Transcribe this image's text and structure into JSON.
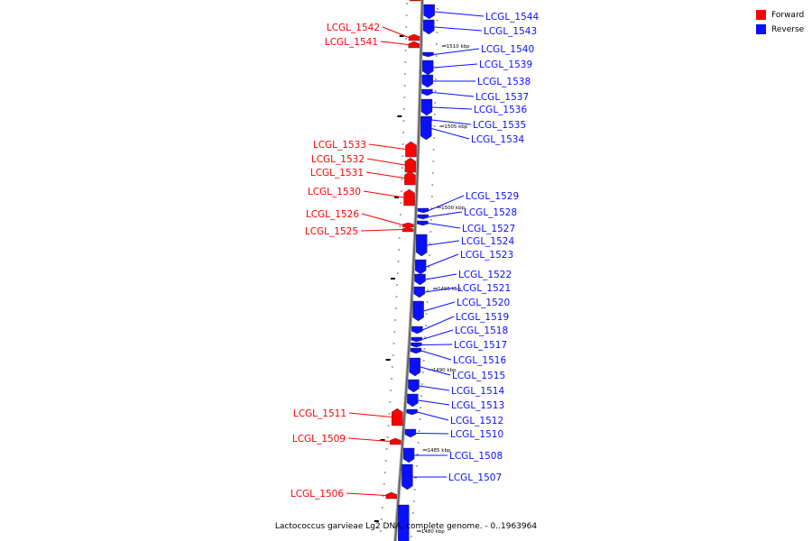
{
  "colors": {
    "forward": "#ff0000",
    "reverse": "#0a10ff",
    "backbone": "#666666"
  },
  "legend": [
    {
      "label": "Forward",
      "color": "#ff0000"
    },
    {
      "label": "Reverse",
      "color": "#0a10ff"
    }
  ],
  "caption": "Lactococcus garvieae Lg2 DNA, complete genome. - 0..1963964",
  "ticks": [
    "1510 kbp",
    "1505 kbp",
    "1500 kbp",
    "1495 kbp",
    "1490 kbp",
    "1485 kbp",
    "1480 kbp"
  ],
  "genes": {
    "forward": [
      "LCGL_1542",
      "LCGL_1541",
      "LCGL_1533",
      "LCGL_1532",
      "LCGL_1531",
      "LCGL_1530",
      "LCGL_1526",
      "LCGL_1525",
      "LCGL_1511",
      "LCGL_1509",
      "LCGL_1506"
    ],
    "reverse": [
      "LCGL_1544",
      "LCGL_1543",
      "LCGL_1540",
      "LCGL_1539",
      "LCGL_1538",
      "LCGL_1537",
      "LCGL_1536",
      "LCGL_1535",
      "LCGL_1534",
      "LCGL_1529",
      "LCGL_1528",
      "LCGL_1527",
      "LCGL_1524",
      "LCGL_1523",
      "LCGL_1522",
      "LCGL_1521",
      "LCGL_1520",
      "LCGL_1519",
      "LCGL_1518",
      "LCGL_1517",
      "LCGL_1516",
      "LCGL_1515",
      "LCGL_1514",
      "LCGL_1513",
      "LCGL_1512",
      "LCGL_1510",
      "LCGL_1508",
      "LCGL_1507"
    ]
  }
}
